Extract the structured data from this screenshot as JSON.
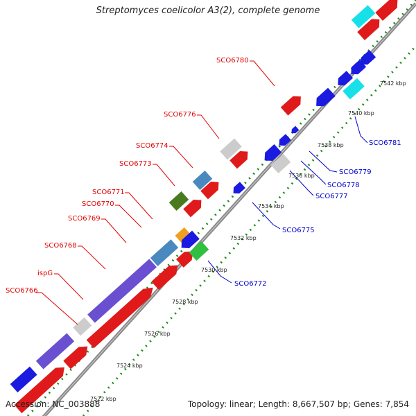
{
  "title": "Streptomyces coelicolor A3(2), complete genome",
  "footer": {
    "accession": "Accession: NC_003888",
    "summary": "Topology: linear; Length: 8,667,507 bp; Genes: 7,854"
  },
  "colors": {
    "backbone": "#8a8a8a",
    "forward_label": "#e00000",
    "reverse_label": "#0000cc",
    "ruler_dots": "#1a8a1a"
  },
  "ruler": {
    "ticks": [
      "7522 kbp",
      "7524 kbp",
      "7526 kbp",
      "7528 kbp",
      "7530 kbp",
      "7532 kbp",
      "7534 kbp",
      "7536 kbp",
      "7538 kbp",
      "7540 kbp",
      "7542 kbp"
    ]
  },
  "gene_labels_forward": [
    "SCO6766",
    "ispG",
    "SCO6768",
    "SCO6769",
    "SCO6770",
    "SCO6771",
    "SCO6773",
    "SCO6774",
    "SCO6776",
    "SCO6780"
  ],
  "gene_labels_reverse": [
    "SCO6772",
    "SCO6775",
    "SCO6777",
    "SCO6778",
    "SCO6779",
    "SCO6781"
  ]
}
